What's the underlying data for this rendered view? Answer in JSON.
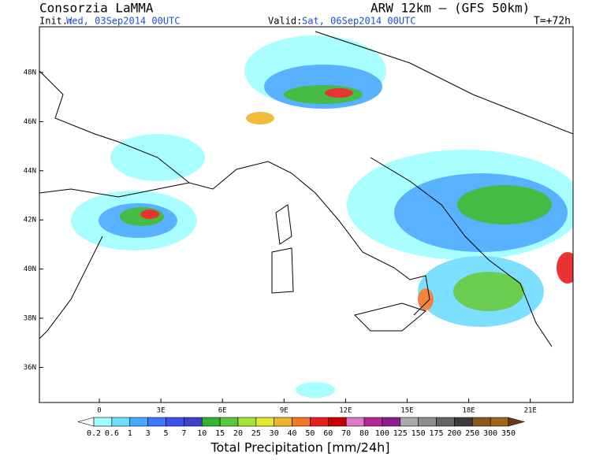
{
  "header": {
    "title": "Consorzia LaMMA",
    "model": "ARW 12km  –  (GFS 50km)",
    "init_label": "Init.:",
    "init": "Wed, 03Sep2014 00UTC",
    "valid_label": "Valid:",
    "valid": "Sat, 06Sep2014 00UTC",
    "lead": "T=+72h"
  },
  "map": {
    "lat_labels": [
      "48N",
      "46N",
      "44N",
      "42N",
      "40N",
      "38N",
      "36N"
    ],
    "lon_labels": [
      "0",
      "3E",
      "6E",
      "9E",
      "12E",
      "15E",
      "18E",
      "21E"
    ]
  },
  "colorbar": {
    "levels": [
      "0.2",
      "0.6",
      "1",
      "3",
      "5",
      "7",
      "10",
      "15",
      "20",
      "25",
      "30",
      "40",
      "50",
      "60",
      "70",
      "80",
      "100",
      "125",
      "150",
      "175",
      "200",
      "250",
      "300",
      "350"
    ],
    "colors": [
      "#ffffff",
      "#a0ffff",
      "#70dcff",
      "#46aaff",
      "#3c78ff",
      "#3c50f0",
      "#4040c8",
      "#32b432",
      "#5ac83c",
      "#a0e632",
      "#e6e632",
      "#f0b428",
      "#f07828",
      "#e61e1e",
      "#c80000",
      "#dc78c8",
      "#b42896",
      "#8c1e8c",
      "#aaaaaa",
      "#8c8c8c",
      "#646464",
      "#3c3c3c",
      "#8c5a1e",
      "#a0641e",
      "#643c14"
    ],
    "label": "Total Precipitation [mm/24h]"
  }
}
